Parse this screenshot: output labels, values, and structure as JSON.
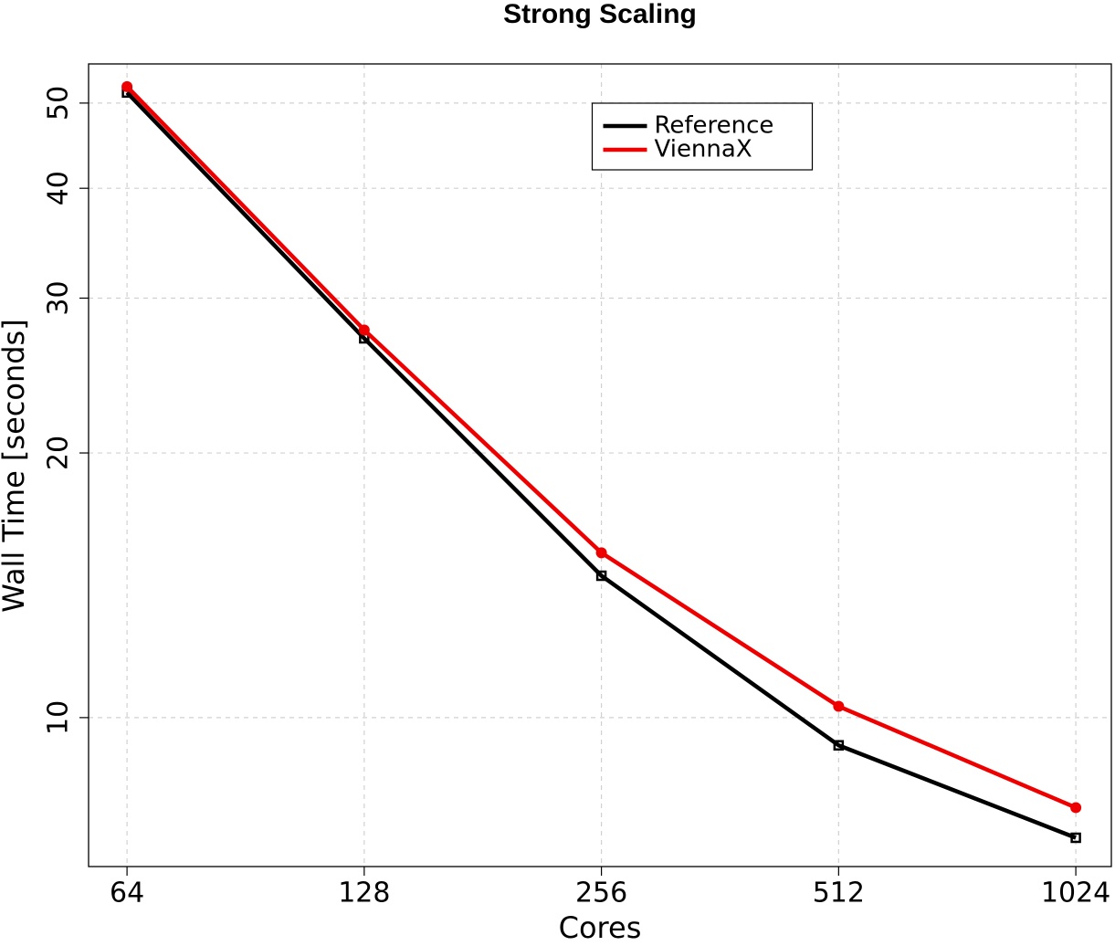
{
  "chart_data": {
    "type": "line",
    "title": "Strong Scaling",
    "x_label": "Cores",
    "y_label": "Wall Time [seconds]",
    "x": [
      64,
      128,
      256,
      512,
      1024
    ],
    "xscale": "log",
    "yscale": "log",
    "xlim": [
      57.2,
      1136
    ],
    "ylim": [
      6.77,
      55.4
    ],
    "xticks": [
      64,
      128,
      256,
      512,
      1024
    ],
    "yticks": [
      10,
      20,
      30,
      40,
      50
    ],
    "grid": true,
    "legend_position": "top",
    "series": [
      {
        "name": "Reference",
        "color": "#000000",
        "marker": "square",
        "values": [
          51.4,
          27.0,
          14.5,
          9.3,
          7.3
        ]
      },
      {
        "name": "ViennaX",
        "color": "#ee0000",
        "marker": "circle",
        "values": [
          52.2,
          27.6,
          15.4,
          10.3,
          7.9
        ]
      }
    ]
  }
}
